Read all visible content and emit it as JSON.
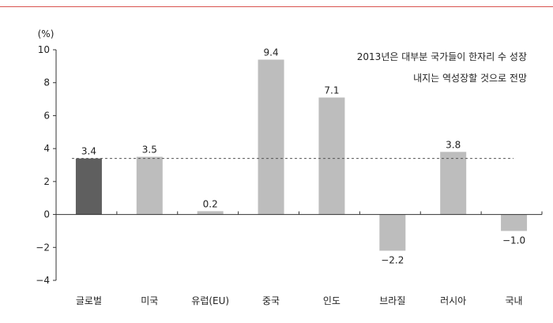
{
  "chart_data": {
    "type": "bar",
    "unit_label": "(%)",
    "categories": [
      "글로벌",
      "미국",
      "유럽(EU)",
      "중국",
      "인도",
      "브라질",
      "러시아",
      "국내"
    ],
    "values": [
      3.4,
      3.5,
      0.2,
      9.4,
      7.1,
      -2.2,
      3.8,
      -1.0
    ],
    "value_labels": [
      "3.4",
      "3.5",
      "0.2",
      "9.4",
      "7.1",
      "−2.2",
      "3.8",
      "−1.0"
    ],
    "highlight_index": 0,
    "reference_line": 3.4,
    "ylim": [
      -4,
      10
    ],
    "yticks": [
      -4,
      -2,
      0,
      2,
      4,
      6,
      8,
      10
    ],
    "ytick_labels": [
      "−4",
      "−2",
      "0",
      "2",
      "4",
      "6",
      "8",
      "10"
    ],
    "annotation": [
      "2013년은 대부분 국가들이 한자리 수 성장",
      "내지는 역성장할 것으로 전망"
    ],
    "colors": {
      "highlight": "#5f5f5f",
      "bar": "#bdbdbd",
      "axis": "#333333",
      "reference": "#555555",
      "topline": "#d9534f"
    }
  }
}
